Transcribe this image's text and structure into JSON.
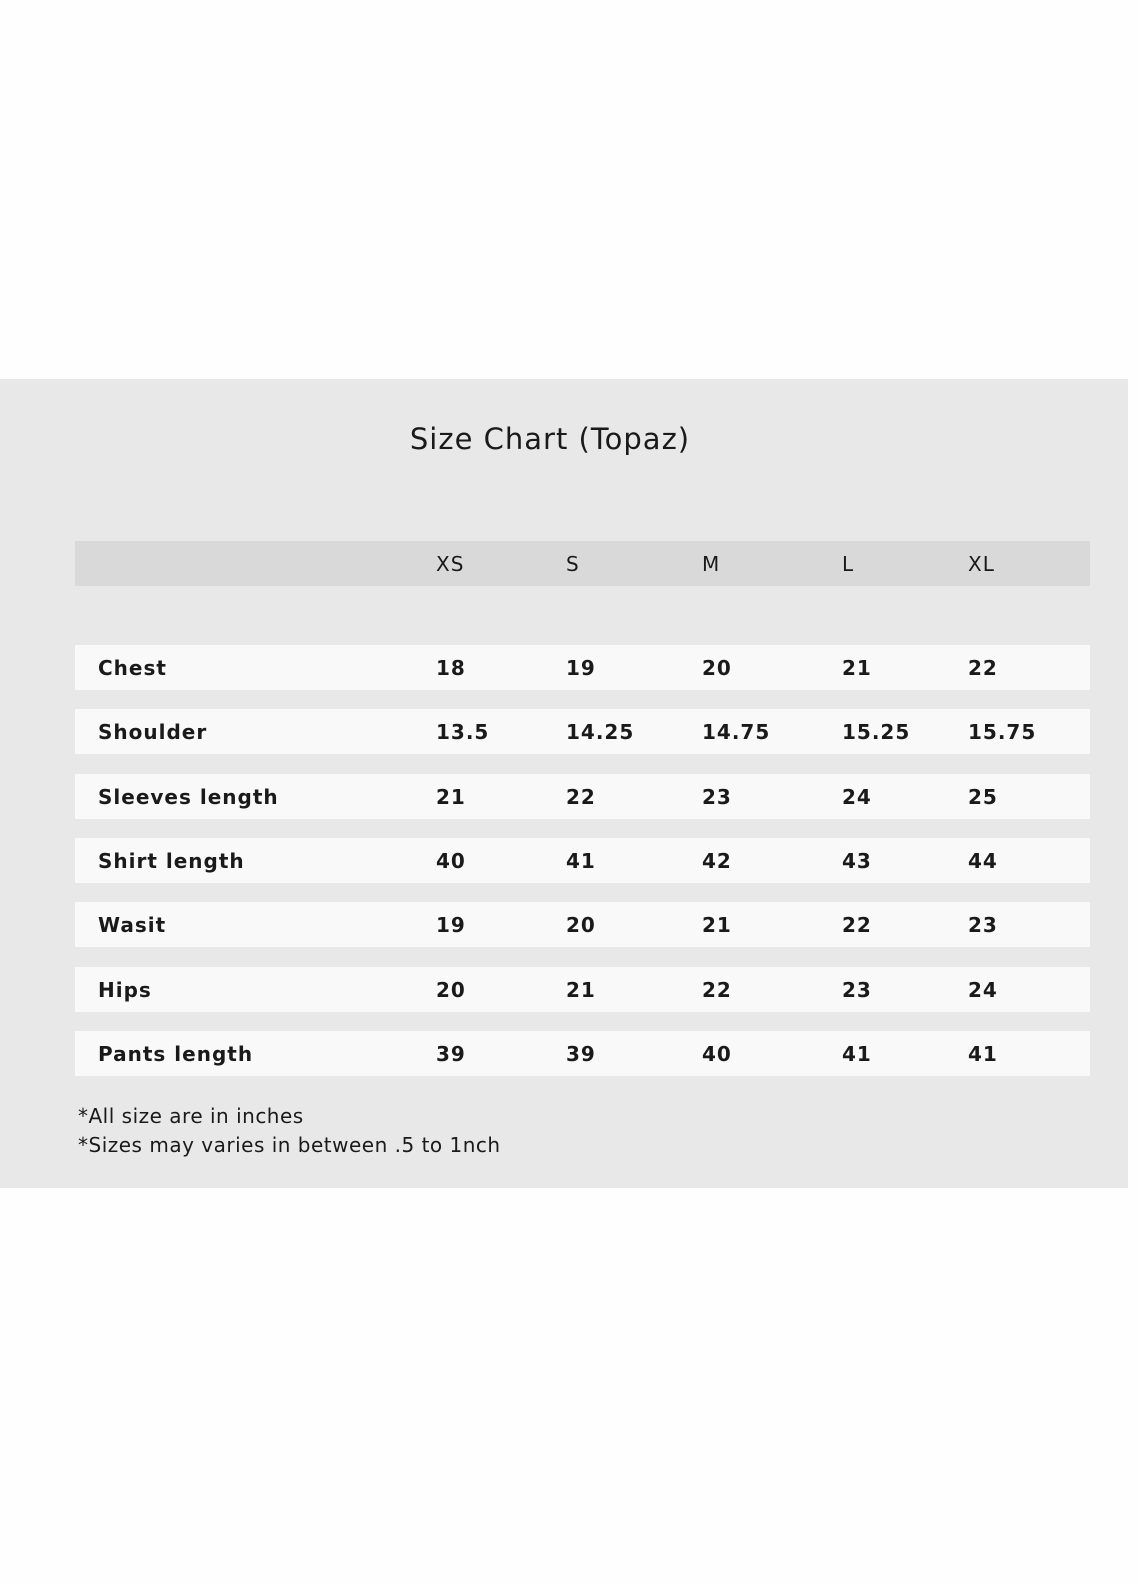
{
  "title": "Size Chart (Topaz)",
  "colors": {
    "panel": "#e8e8e8",
    "header_row": "#d9d9d9",
    "body_row": "#f9f9f9",
    "text": "#1a1a1a"
  },
  "table": {
    "headers": [
      "",
      "XS",
      "S",
      "M",
      "L",
      "XL"
    ],
    "rows": [
      [
        "Chest",
        "18",
        "19",
        "20",
        "21",
        "22"
      ],
      [
        "Shoulder",
        "13.5",
        "14.25",
        "14.75",
        "15.25",
        "15.75"
      ],
      [
        "Sleeves length",
        "21",
        "22",
        "23",
        "24",
        "25"
      ],
      [
        "Shirt length",
        "40",
        "41",
        "42",
        "43",
        "44"
      ],
      [
        "Wasit",
        "19",
        "20",
        "21",
        "22",
        "23"
      ],
      [
        "Hips",
        "20",
        "21",
        "22",
        "23",
        "24"
      ],
      [
        "Pants length",
        "39",
        "39",
        "40",
        "41",
        "41"
      ]
    ]
  },
  "notes": [
    "*All size are in inches",
    "*Sizes may varies in between .5 to 1nch"
  ]
}
